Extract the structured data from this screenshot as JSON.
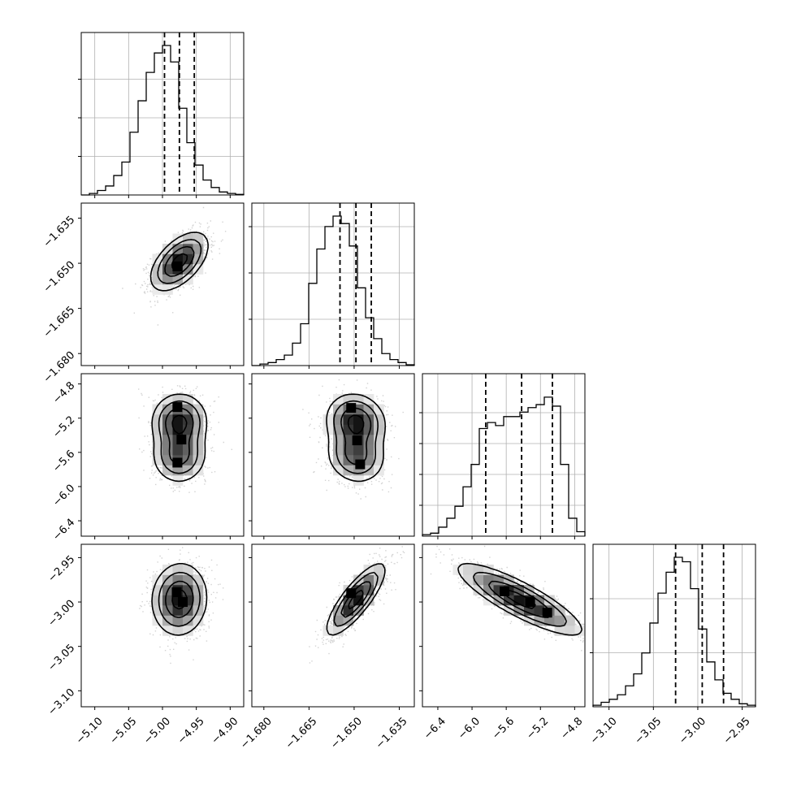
{
  "chart_data": {
    "type": "corner",
    "n_params": 4,
    "params": [
      {
        "range": [
          -5.12,
          -4.88
        ],
        "ticks": [
          -5.1,
          -5.05,
          -5.0,
          -4.95,
          -4.9
        ],
        "tick_labels": [
          "−5.10",
          "−5.05",
          "−5.00",
          "−4.95",
          "−4.90"
        ],
        "quantiles": [
          -4.997,
          -4.975,
          -4.953
        ],
        "hist": [
          0,
          0.01,
          0.03,
          0.06,
          0.13,
          0.22,
          0.42,
          0.63,
          0.82,
          0.95,
          1.0,
          0.89,
          0.58,
          0.35,
          0.2,
          0.1,
          0.05,
          0.02,
          0.01,
          0.004
        ],
        "hist_gridlines": [
          0.25,
          0.5,
          0.75
        ]
      },
      {
        "range": [
          -1.684,
          -1.63
        ],
        "ticks": [
          -1.68,
          -1.665,
          -1.65,
          -1.635
        ],
        "tick_labels": [
          "−1.680",
          "−1.665",
          "−1.650",
          "−1.635"
        ],
        "quantiles": [
          -1.6547,
          -1.6494,
          -1.6443
        ],
        "hist": [
          0,
          0.01,
          0.02,
          0.04,
          0.07,
          0.15,
          0.28,
          0.55,
          0.78,
          0.93,
          1.0,
          0.95,
          0.8,
          0.52,
          0.32,
          0.18,
          0.08,
          0.04,
          0.02,
          0.005
        ],
        "hist_gridlines": [
          0.3,
          0.6,
          0.9
        ]
      },
      {
        "range": [
          -6.58,
          -4.68
        ],
        "ticks": [
          -6.4,
          -6.0,
          -5.6,
          -5.2,
          -4.8
        ],
        "tick_labels": [
          "−6.4",
          "−6.0",
          "−5.6",
          "−5.2",
          "−4.8"
        ],
        "quantiles": [
          -5.84,
          -5.42,
          -5.06
        ],
        "hist": [
          0.01,
          0.02,
          0.06,
          0.12,
          0.2,
          0.33,
          0.48,
          0.72,
          0.76,
          0.74,
          0.8,
          0.8,
          0.83,
          0.86,
          0.88,
          0.93,
          0.87,
          0.48,
          0.12,
          0.03
        ],
        "hist_gridlines": [
          0.2,
          0.4,
          0.6,
          0.8
        ]
      },
      {
        "range": [
          -3.118,
          -2.935
        ],
        "ticks": [
          -3.1,
          -3.05,
          -3.0,
          -2.95
        ],
        "tick_labels": [
          "−3.10",
          "−3.05",
          "−3.00",
          "−2.95"
        ],
        "quantiles": [
          -3.025,
          -2.995,
          -2.971
        ],
        "hist": [
          0.01,
          0.03,
          0.05,
          0.08,
          0.14,
          0.22,
          0.36,
          0.56,
          0.76,
          0.9,
          1.0,
          0.97,
          0.79,
          0.52,
          0.3,
          0.18,
          0.09,
          0.05,
          0.02,
          0.01
        ],
        "hist_gridlines": [
          0.35,
          0.7
        ]
      }
    ],
    "pairs": [
      {
        "x": 0,
        "y": 1,
        "mean": [
          -4.975,
          -1.6494
        ],
        "sd": [
          0.021,
          0.0048
        ],
        "rho": 0.55,
        "mode": "gauss",
        "peaks": [
          [
            -4.978,
            -1.651
          ]
        ]
      },
      {
        "x": 0,
        "y": 2,
        "mean": [
          -4.975,
          -5.44
        ],
        "sd": [
          0.02,
          0.36
        ],
        "rho": 0.05,
        "mode": "bimodal_y",
        "peaks": [
          [
            -4.978,
            -5.07
          ],
          [
            -4.972,
            -5.45
          ],
          [
            -4.978,
            -5.72
          ]
        ]
      },
      {
        "x": 1,
        "y": 2,
        "mean": [
          -1.6494,
          -5.44
        ],
        "sd": [
          0.0048,
          0.36
        ],
        "rho": -0.35,
        "mode": "bimodal_y",
        "peaks": [
          [
            -1.651,
            -5.08
          ],
          [
            -1.649,
            -5.46
          ],
          [
            -1.648,
            -5.74
          ]
        ]
      },
      {
        "x": 0,
        "y": 3,
        "mean": [
          -4.975,
          -2.997
        ],
        "sd": [
          0.02,
          0.02
        ],
        "rho": 0.05,
        "mode": "gauss",
        "peaks": [
          [
            -4.979,
            -2.989
          ],
          [
            -4.97,
            -3.0
          ]
        ]
      },
      {
        "x": 1,
        "y": 3,
        "mean": [
          -1.6494,
          -2.997
        ],
        "sd": [
          0.0048,
          0.02
        ],
        "rho": 0.82,
        "mode": "gauss",
        "peaks": [
          [
            -1.651,
            -2.99
          ]
        ]
      },
      {
        "x": 2,
        "y": 3,
        "mean": [
          -5.44,
          -2.997
        ],
        "sd": [
          0.36,
          0.02
        ],
        "rho": -0.85,
        "mode": "gauss",
        "peaks": [
          [
            -5.62,
            -2.988
          ],
          [
            -5.32,
            -3.0
          ],
          [
            -5.12,
            -3.012
          ]
        ]
      }
    ],
    "contour_levels": [
      0.118,
      0.393,
      0.675,
      0.865
    ],
    "grid_on": true,
    "colors": {
      "ink": "#000000",
      "points": "#7f7f7f",
      "grid": "#b0b0b0"
    }
  }
}
